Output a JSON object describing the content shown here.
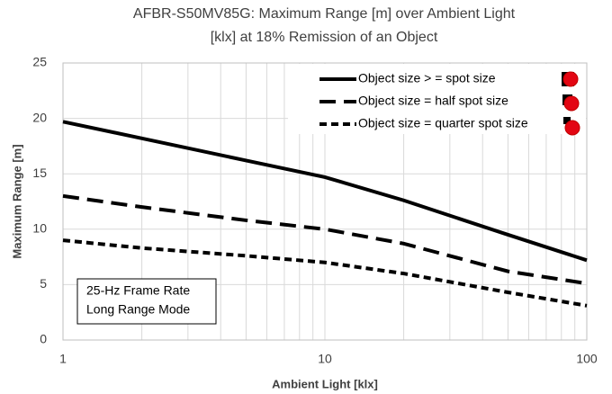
{
  "chart_data": {
    "type": "line",
    "title": [
      "AFBR-S50MV85G: Maximum Range [m] over Ambient Light",
      "[klx] at 18% Remission of an Object"
    ],
    "xlabel": "Ambient Light [klx]",
    "ylabel": "Maximum Range  [m]",
    "xscale": "log",
    "x": [
      1,
      2,
      5,
      10,
      20,
      50,
      100
    ],
    "series": [
      {
        "name": "Object size > = spot size",
        "color": "#000000",
        "linestyle": "solid",
        "values": [
          19.7,
          18.2,
          16.2,
          14.7,
          12.6,
          9.5,
          7.2
        ]
      },
      {
        "name": "Object size = half spot size",
        "color": "#000000",
        "linestyle": "dashed",
        "values": [
          13,
          12.0,
          10.8,
          10,
          8.7,
          6.2,
          5.1
        ]
      },
      {
        "name": "Object size = quarter spot size",
        "color": "#000000",
        "linestyle": "dotted",
        "values": [
          9,
          8.3,
          7.6,
          7,
          6,
          4.3,
          3.1
        ]
      }
    ],
    "xlim": [
      1,
      100
    ],
    "xticks": [
      1,
      10,
      100
    ],
    "ylim": [
      0,
      25
    ],
    "yticks": [
      0,
      5,
      10,
      15,
      20,
      25
    ],
    "grid": true,
    "legend": "upper right",
    "annotations": [
      "25-Hz Frame Rate",
      "Long Range Mode"
    ]
  }
}
